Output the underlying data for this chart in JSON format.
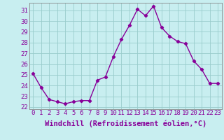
{
  "x": [
    0,
    1,
    2,
    3,
    4,
    5,
    6,
    7,
    8,
    9,
    10,
    11,
    12,
    13,
    14,
    15,
    16,
    17,
    18,
    19,
    20,
    21,
    22,
    23
  ],
  "y": [
    25.1,
    23.8,
    22.7,
    22.5,
    22.3,
    22.5,
    22.6,
    22.6,
    24.5,
    24.8,
    26.7,
    28.3,
    29.6,
    31.1,
    30.5,
    31.4,
    29.4,
    28.6,
    28.1,
    27.9,
    26.3,
    25.5,
    24.2,
    24.2
  ],
  "ylim": [
    21.8,
    31.7
  ],
  "yticks": [
    22,
    23,
    24,
    25,
    26,
    27,
    28,
    29,
    30,
    31
  ],
  "xlabel": "Windchill (Refroidissement éolien,°C)",
  "line_color": "#880099",
  "bg_color": "#c8eef0",
  "grid_color": "#99cccc",
  "label_color": "#880099",
  "tick_color": "#880099",
  "marker": "D",
  "marker_size": 2.2,
  "line_width": 1.0,
  "xlabel_fontsize": 7.5,
  "tick_fontsize": 6.5
}
